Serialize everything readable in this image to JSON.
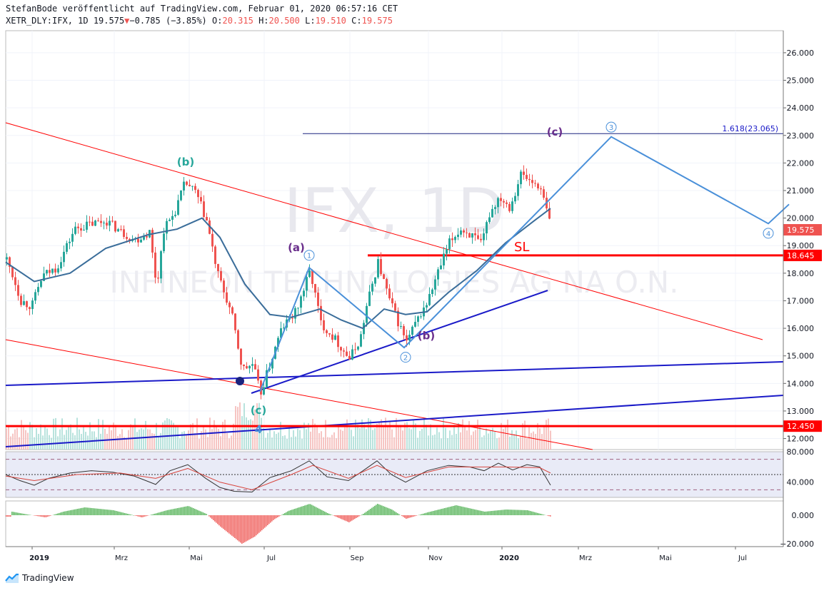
{
  "header": {
    "attribution": "StefanBode veröffentlicht auf TradingView.com, Februar 01, 2020 06:57:16 CET",
    "symbol": "XETR_DLY:IFX, 1D 19.575",
    "change_arrow": "▼",
    "change": "−0.785 (−3.85%)",
    "o_label": "O:",
    "o_value": "20.315",
    "h_label": "H:",
    "h_value": "20.500",
    "l_label": "L:",
    "l_value": "19.510",
    "c_label": "C:",
    "c_value": "19.575"
  },
  "watermark": {
    "ticker": "IFX, 1D",
    "name": "INFINEON TECHNOLOGIES AG NA O.N."
  },
  "brand": {
    "label": "TradingView"
  },
  "colors": {
    "up": "#26a69a",
    "down": "#ef5350",
    "ma": "#3a6d9a",
    "wave": "#4a90d9",
    "trend": "#1a1ac8",
    "level": "#ff0000",
    "grid": "#f0f3fa"
  },
  "chart_data": [
    {
      "type": "candlestick",
      "title": "XETR_DLY:IFX, 1D",
      "x_ticks": [
        "2019",
        "Mrz",
        "Mai",
        "Jul",
        "Sep",
        "Nov",
        "2020",
        "Mrz",
        "Mai",
        "Jul"
      ],
      "y_ticks": [
        "26.000",
        "25.000",
        "24.000",
        "23.000",
        "22.000",
        "21.000",
        "20.000",
        "19.000",
        "18.000",
        "17.000",
        "16.000",
        "15.000",
        "14.000",
        "13.000",
        "12.000"
      ],
      "ylim": [
        11.6,
        26.8
      ],
      "price_labels": [
        {
          "value": 19.575,
          "text": "19.575",
          "color": "#ef5350"
        },
        {
          "value": 18.645,
          "text": "18.645",
          "color": "#ff0000"
        },
        {
          "value": 12.45,
          "text": "12.450",
          "color": "#ff0000"
        }
      ],
      "close_path": [
        {
          "x": 0,
          "y": 18.5
        },
        {
          "x": 10,
          "y": 17.8
        },
        {
          "x": 20,
          "y": 17.0
        },
        {
          "x": 35,
          "y": 16.8
        },
        {
          "x": 50,
          "y": 17.9
        },
        {
          "x": 70,
          "y": 18.2
        },
        {
          "x": 95,
          "y": 19.6
        },
        {
          "x": 120,
          "y": 19.8
        },
        {
          "x": 140,
          "y": 19.9
        },
        {
          "x": 160,
          "y": 19.5
        },
        {
          "x": 180,
          "y": 19.2
        },
        {
          "x": 200,
          "y": 19.5
        },
        {
          "x": 210,
          "y": 17.5
        },
        {
          "x": 220,
          "y": 19.6
        },
        {
          "x": 235,
          "y": 20.2
        },
        {
          "x": 250,
          "y": 21.3
        },
        {
          "x": 265,
          "y": 20.9
        },
        {
          "x": 280,
          "y": 19.9
        },
        {
          "x": 295,
          "y": 18.0
        },
        {
          "x": 315,
          "y": 16.5
        },
        {
          "x": 330,
          "y": 14.5
        },
        {
          "x": 345,
          "y": 14.7
        },
        {
          "x": 355,
          "y": 13.6
        },
        {
          "x": 370,
          "y": 14.8
        },
        {
          "x": 385,
          "y": 16.0
        },
        {
          "x": 405,
          "y": 16.6
        },
        {
          "x": 425,
          "y": 18.1
        },
        {
          "x": 440,
          "y": 16.2
        },
        {
          "x": 460,
          "y": 15.6
        },
        {
          "x": 480,
          "y": 14.9
        },
        {
          "x": 495,
          "y": 15.6
        },
        {
          "x": 505,
          "y": 16.9
        },
        {
          "x": 520,
          "y": 18.4
        },
        {
          "x": 535,
          "y": 17.1
        },
        {
          "x": 550,
          "y": 16.1
        },
        {
          "x": 560,
          "y": 15.5
        },
        {
          "x": 575,
          "y": 16.3
        },
        {
          "x": 590,
          "y": 17.0
        },
        {
          "x": 605,
          "y": 18.1
        },
        {
          "x": 620,
          "y": 19.1
        },
        {
          "x": 635,
          "y": 19.6
        },
        {
          "x": 650,
          "y": 19.4
        },
        {
          "x": 665,
          "y": 19.0
        },
        {
          "x": 675,
          "y": 20.1
        },
        {
          "x": 690,
          "y": 20.8
        },
        {
          "x": 705,
          "y": 20.4
        },
        {
          "x": 720,
          "y": 21.6
        },
        {
          "x": 735,
          "y": 21.3
        },
        {
          "x": 745,
          "y": 21.2
        },
        {
          "x": 755,
          "y": 20.4
        },
        {
          "x": 763,
          "y": 19.575
        }
      ],
      "moving_average": [
        {
          "x": 0,
          "y": 18.4
        },
        {
          "x": 40,
          "y": 17.7
        },
        {
          "x": 90,
          "y": 18.0
        },
        {
          "x": 140,
          "y": 18.9
        },
        {
          "x": 200,
          "y": 19.4
        },
        {
          "x": 240,
          "y": 19.6
        },
        {
          "x": 275,
          "y": 20.0
        },
        {
          "x": 300,
          "y": 19.3
        },
        {
          "x": 335,
          "y": 17.6
        },
        {
          "x": 370,
          "y": 16.5
        },
        {
          "x": 400,
          "y": 16.4
        },
        {
          "x": 440,
          "y": 16.7
        },
        {
          "x": 470,
          "y": 16.3
        },
        {
          "x": 500,
          "y": 16.0
        },
        {
          "x": 530,
          "y": 16.7
        },
        {
          "x": 560,
          "y": 16.5
        },
        {
          "x": 590,
          "y": 16.6
        },
        {
          "x": 620,
          "y": 17.3
        },
        {
          "x": 660,
          "y": 18.1
        },
        {
          "x": 700,
          "y": 19.1
        },
        {
          "x": 740,
          "y": 19.9
        },
        {
          "x": 763,
          "y": 20.35
        }
      ],
      "wave_path": [
        {
          "x": 356,
          "y": 13.7
        },
        {
          "x": 425,
          "y": 18.2
        },
        {
          "x": 558,
          "y": 15.3
        },
        {
          "x": 848,
          "y": 22.95
        },
        {
          "x": 1068,
          "y": 19.8
        },
        {
          "x": 1097,
          "y": 20.5
        }
      ],
      "fib_level": {
        "value": 23.065,
        "text": "1.618(23.065)"
      },
      "sl_level": {
        "value": 18.645,
        "text": "SL"
      },
      "annotations": [
        {
          "text": "(b)",
          "x": 252,
          "y": 21.9,
          "color": "#26a69a"
        },
        {
          "text": "(a)",
          "x": 407,
          "y": 18.8,
          "color": "#6a2f8c"
        },
        {
          "text": "(b)",
          "x": 589,
          "y": 15.6,
          "color": "#6a2f8c"
        },
        {
          "text": "(c)",
          "x": 769,
          "y": 23.0,
          "color": "#6a2f8c"
        },
        {
          "text": "(c)",
          "x": 354,
          "y": 12.9,
          "color": "#26a69a"
        },
        {
          "text": "4",
          "x": 354,
          "y": 12.2,
          "color": "#4a90d9"
        }
      ],
      "wave_labels": [
        {
          "text": "1",
          "x": 425,
          "y": 18.65
        },
        {
          "text": "2",
          "x": 560,
          "y": 14.95
        },
        {
          "text": "3",
          "x": 848,
          "y": 23.3
        },
        {
          "text": "4",
          "x": 1068,
          "y": 19.45
        }
      ]
    },
    {
      "type": "line",
      "title": "RSI",
      "y_ticks": [
        "80.000",
        "40.000"
      ],
      "ylim": [
        20,
        80
      ],
      "bands": [
        30,
        50,
        70
      ],
      "rsi": [
        {
          "x": 0,
          "y": 50
        },
        {
          "x": 20,
          "y": 42
        },
        {
          "x": 40,
          "y": 36
        },
        {
          "x": 60,
          "y": 45
        },
        {
          "x": 90,
          "y": 52
        },
        {
          "x": 120,
          "y": 55
        },
        {
          "x": 150,
          "y": 53
        },
        {
          "x": 180,
          "y": 48
        },
        {
          "x": 210,
          "y": 37
        },
        {
          "x": 230,
          "y": 55
        },
        {
          "x": 255,
          "y": 63
        },
        {
          "x": 280,
          "y": 45
        },
        {
          "x": 300,
          "y": 33
        },
        {
          "x": 320,
          "y": 28
        },
        {
          "x": 345,
          "y": 27
        },
        {
          "x": 370,
          "y": 46
        },
        {
          "x": 400,
          "y": 55
        },
        {
          "x": 425,
          "y": 68
        },
        {
          "x": 450,
          "y": 47
        },
        {
          "x": 480,
          "y": 42
        },
        {
          "x": 505,
          "y": 58
        },
        {
          "x": 520,
          "y": 68
        },
        {
          "x": 540,
          "y": 50
        },
        {
          "x": 560,
          "y": 40
        },
        {
          "x": 590,
          "y": 55
        },
        {
          "x": 620,
          "y": 62
        },
        {
          "x": 650,
          "y": 60
        },
        {
          "x": 670,
          "y": 55
        },
        {
          "x": 690,
          "y": 65
        },
        {
          "x": 710,
          "y": 56
        },
        {
          "x": 730,
          "y": 63
        },
        {
          "x": 748,
          "y": 60
        },
        {
          "x": 763,
          "y": 36
        }
      ],
      "rsi_ma": [
        {
          "x": 0,
          "y": 48
        },
        {
          "x": 40,
          "y": 42
        },
        {
          "x": 100,
          "y": 50
        },
        {
          "x": 160,
          "y": 52
        },
        {
          "x": 210,
          "y": 45
        },
        {
          "x": 255,
          "y": 58
        },
        {
          "x": 300,
          "y": 40
        },
        {
          "x": 345,
          "y": 30
        },
        {
          "x": 400,
          "y": 50
        },
        {
          "x": 430,
          "y": 62
        },
        {
          "x": 480,
          "y": 45
        },
        {
          "x": 520,
          "y": 62
        },
        {
          "x": 560,
          "y": 46
        },
        {
          "x": 620,
          "y": 60
        },
        {
          "x": 700,
          "y": 60
        },
        {
          "x": 748,
          "y": 59
        },
        {
          "x": 763,
          "y": 52
        }
      ]
    },
    {
      "type": "bar",
      "title": "Oscillator",
      "y_ticks": [
        "0.000",
        "−20.000"
      ],
      "ylim": [
        -22,
        10
      ],
      "envelope": [
        {
          "x": 8,
          "y": 2.5
        },
        {
          "x": 30,
          "y": 0.5
        },
        {
          "x": 55,
          "y": -1.5
        },
        {
          "x": 80,
          "y": 2.5
        },
        {
          "x": 110,
          "y": 5.5
        },
        {
          "x": 150,
          "y": 3.5
        },
        {
          "x": 190,
          "y": -1.5
        },
        {
          "x": 225,
          "y": 3.5
        },
        {
          "x": 255,
          "y": 6.5
        },
        {
          "x": 280,
          "y": 1
        },
        {
          "x": 300,
          "y": -8
        },
        {
          "x": 330,
          "y": -20
        },
        {
          "x": 348,
          "y": -15
        },
        {
          "x": 375,
          "y": -3
        },
        {
          "x": 395,
          "y": 3
        },
        {
          "x": 425,
          "y": 8
        },
        {
          "x": 450,
          "y": 1.5
        },
        {
          "x": 480,
          "y": -5
        },
        {
          "x": 500,
          "y": 1
        },
        {
          "x": 520,
          "y": 8
        },
        {
          "x": 540,
          "y": 4
        },
        {
          "x": 560,
          "y": -2.5
        },
        {
          "x": 590,
          "y": 2
        },
        {
          "x": 630,
          "y": 7
        },
        {
          "x": 670,
          "y": 2.5
        },
        {
          "x": 700,
          "y": 4
        },
        {
          "x": 730,
          "y": 3.5
        },
        {
          "x": 763,
          "y": -1
        }
      ]
    }
  ]
}
